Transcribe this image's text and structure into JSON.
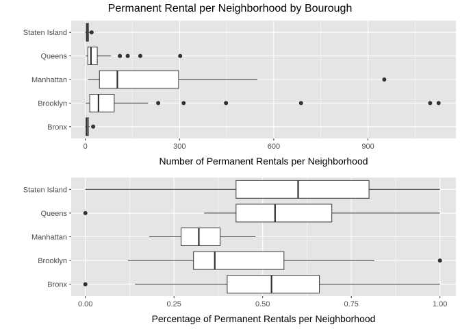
{
  "title": "Permanent Rental per Neighborhood by Bourough",
  "colors": {
    "panel": "#e5e5e5",
    "grid": "#ffffff",
    "box_fill": "#ffffff",
    "stroke": "#333333"
  },
  "chart_data": [
    {
      "type": "box",
      "orientation": "horizontal",
      "xlabel": "Number of Permanent Rentals per Neighborhood",
      "xlim": [
        -45,
        1180
      ],
      "xticks": [
        0,
        300,
        600,
        900
      ],
      "xtick_labels": [
        "0",
        "300",
        "600",
        "900"
      ],
      "categories": [
        "Bronx",
        "Brooklyn",
        "Manhattan",
        "Queens",
        "Staten Island"
      ],
      "boxes": [
        {
          "category": "Bronx",
          "whisker_low": 0,
          "q1": 2,
          "median": 5,
          "q3": 10,
          "whisker_high": 14,
          "outliers": [
            25
          ]
        },
        {
          "category": "Brooklyn",
          "whisker_low": 1,
          "q1": 14,
          "median": 42,
          "q3": 92,
          "whisker_high": 200,
          "outliers": [
            232,
            313,
            448,
            687,
            1098,
            1125
          ]
        },
        {
          "category": "Manhattan",
          "whisker_low": 8,
          "q1": 45,
          "median": 102,
          "q3": 297,
          "whisker_high": 548,
          "outliers": [
            952
          ]
        },
        {
          "category": "Queens",
          "whisker_low": 1,
          "q1": 8,
          "median": 18,
          "q3": 38,
          "whisker_high": 82,
          "outliers": [
            110,
            135,
            175,
            302
          ]
        },
        {
          "category": "Staten Island",
          "whisker_low": 0,
          "q1": 3,
          "median": 6,
          "q3": 10,
          "whisker_high": 16,
          "outliers": [
            20
          ]
        }
      ],
      "grid": true
    },
    {
      "type": "box",
      "orientation": "horizontal",
      "xlabel": "Percentage of Permanent Rentals per Neighborhood",
      "xlim": [
        -0.04,
        1.045
      ],
      "xticks": [
        0,
        0.25,
        0.5,
        0.75,
        1
      ],
      "xtick_labels": [
        "0.00",
        "0.25",
        "0.50",
        "0.75",
        "1.00"
      ],
      "categories": [
        "Bronx",
        "Brooklyn",
        "Manhattan",
        "Queens",
        "Staten Island"
      ],
      "boxes": [
        {
          "category": "Bronx",
          "whisker_low": 0.14,
          "q1": 0.4,
          "median": 0.525,
          "q3": 0.66,
          "whisker_high": 1.0,
          "outliers": [
            0.0
          ]
        },
        {
          "category": "Brooklyn",
          "whisker_low": 0.12,
          "q1": 0.305,
          "median": 0.365,
          "q3": 0.56,
          "whisker_high": 0.815,
          "outliers": [
            1.0
          ]
        },
        {
          "category": "Manhattan",
          "whisker_low": 0.18,
          "q1": 0.27,
          "median": 0.32,
          "q3": 0.38,
          "whisker_high": 0.48,
          "outliers": []
        },
        {
          "category": "Queens",
          "whisker_low": 0.335,
          "q1": 0.425,
          "median": 0.535,
          "q3": 0.695,
          "whisker_high": 1.0,
          "outliers": [
            0.0
          ]
        },
        {
          "category": "Staten Island",
          "whisker_low": 0.0,
          "q1": 0.425,
          "median": 0.6,
          "q3": 0.8,
          "whisker_high": 1.0,
          "outliers": []
        }
      ],
      "grid": true
    }
  ]
}
